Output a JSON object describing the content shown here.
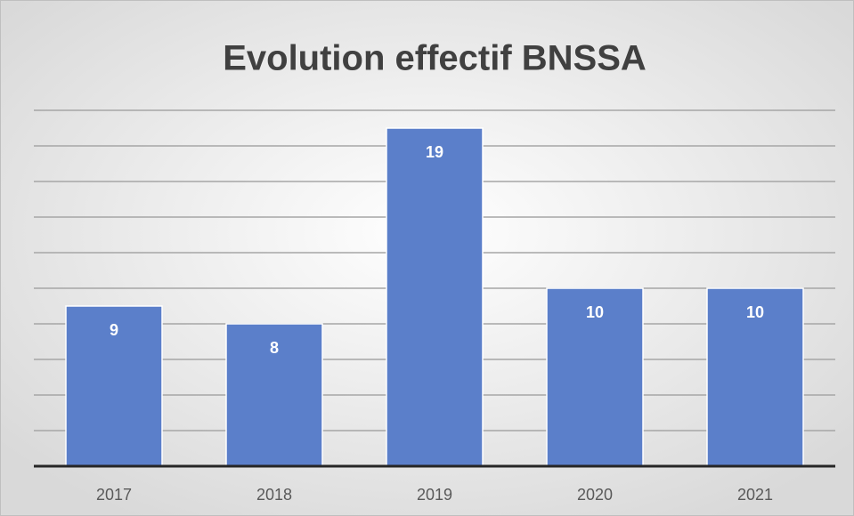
{
  "chart_data": {
    "type": "bar",
    "title": "Evolution effectif BNSSA",
    "categories": [
      "2017",
      "2018",
      "2019",
      "2020",
      "2021"
    ],
    "values": [
      9,
      8,
      19,
      10,
      10
    ],
    "color": "#5b7fca",
    "ylim": [
      0,
      20
    ],
    "yticks": [
      0,
      2,
      4,
      6,
      8,
      10,
      12,
      14,
      16,
      18,
      20
    ],
    "grid": true
  }
}
